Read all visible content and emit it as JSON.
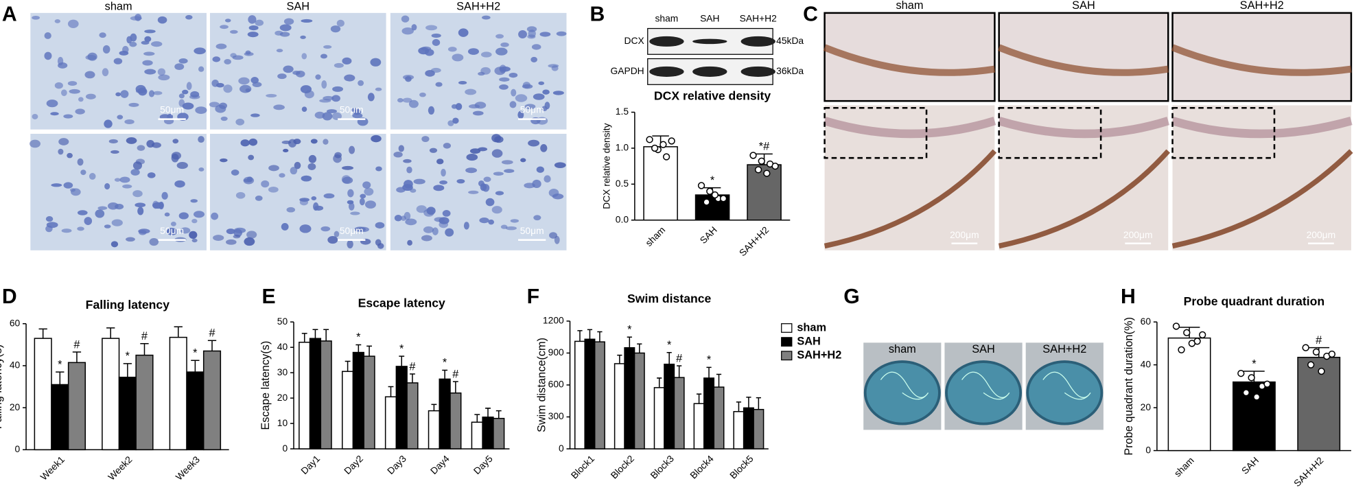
{
  "panel_labels": [
    "A",
    "B",
    "C",
    "D",
    "E",
    "F",
    "G",
    "H"
  ],
  "panel_a": {
    "columns": [
      "sham",
      "SAH",
      "SAH+H2"
    ],
    "scale_bar": "50μm"
  },
  "panel_b_blot": {
    "columns": [
      "sham",
      "SAH",
      "SAH+H2"
    ],
    "rows": [
      "DCX",
      "GAPDH"
    ],
    "sizes": [
      "45kDa",
      "36kDa"
    ]
  },
  "panel_c": {
    "columns": [
      "sham",
      "SAH",
      "SAH+H2"
    ],
    "scale_bar": "200μm"
  },
  "panel_g": {
    "columns": [
      "sham",
      "SAH",
      "SAH+H2"
    ]
  },
  "chart_data": [
    {
      "type": "bar",
      "title": "DCX relative density",
      "y_label": "DCX relative density",
      "categories": [
        "sham",
        "SAH",
        "SAH+H2"
      ],
      "values": [
        1.02,
        0.35,
        0.77
      ],
      "errors": [
        0.15,
        0.1,
        0.15
      ],
      "colors": [
        "#ffffff",
        "#000000",
        "#666666"
      ],
      "points": [
        [
          1.12,
          0.98,
          0.88,
          1.0,
          1.05,
          1.1
        ],
        [
          0.48,
          0.4,
          0.3,
          0.25,
          0.35,
          0.3
        ],
        [
          0.9,
          0.82,
          0.78,
          0.7,
          0.65,
          0.75
        ]
      ],
      "significance": [
        null,
        "*",
        "*#"
      ],
      "ylim": [
        0,
        1.5
      ],
      "yticks": [
        {
          "value": 0,
          "label": "0.0"
        },
        {
          "value": 0.5,
          "label": "0.5"
        },
        {
          "value": 1,
          "label": "1.0"
        },
        {
          "value": 1.5,
          "label": "1.5"
        }
      ]
    },
    {
      "type": "grouped_bar",
      "title": "Falling latency",
      "y_label": "Falling latency(s)",
      "categories": [
        "Week1",
        "Week2",
        "Week3"
      ],
      "series": [
        {
          "name": "sham",
          "color": "#ffffff",
          "values": [
            53,
            53,
            53.5
          ],
          "errors": [
            4.5,
            5,
            5
          ],
          "significance": [
            null,
            null,
            null
          ]
        },
        {
          "name": "SAH",
          "color": "#000000",
          "values": [
            31,
            34.5,
            37
          ],
          "errors": [
            6,
            6.5,
            5.5
          ],
          "significance": [
            "*",
            "*",
            "*"
          ]
        },
        {
          "name": "SAH+H2",
          "color": "#808080",
          "values": [
            41.5,
            45,
            47
          ],
          "errors": [
            5,
            5.5,
            5
          ],
          "significance": [
            "#",
            "#",
            "#"
          ]
        }
      ],
      "ylim": [
        0,
        60
      ],
      "yticks": [
        0,
        20,
        40,
        60
      ]
    },
    {
      "type": "grouped_bar",
      "title": "Escape latency",
      "y_label": "Escape latency(s)",
      "categories": [
        "Day1",
        "Day2",
        "Day3",
        "Day4",
        "Day5"
      ],
      "series": [
        {
          "name": "sham",
          "color": "#ffffff",
          "values": [
            42,
            30.5,
            20.5,
            15,
            10.5
          ],
          "errors": [
            3.5,
            4,
            4,
            2.5,
            3
          ],
          "significance": [
            null,
            null,
            null,
            null,
            null
          ]
        },
        {
          "name": "SAH",
          "color": "#000000",
          "values": [
            43.5,
            38,
            32.5,
            27.5,
            12.5
          ],
          "errors": [
            3.5,
            3,
            4,
            3.5,
            3.5
          ],
          "significance": [
            null,
            "*",
            "*",
            "*",
            null
          ]
        },
        {
          "name": "SAH+H2",
          "color": "#808080",
          "values": [
            42.5,
            36.5,
            26,
            22,
            12
          ],
          "errors": [
            4.5,
            4,
            3.5,
            4.5,
            3
          ],
          "significance": [
            null,
            null,
            "#",
            "#",
            null
          ]
        }
      ],
      "ylim": [
        0,
        50
      ],
      "yticks": [
        0,
        10,
        20,
        30,
        40,
        50
      ]
    },
    {
      "type": "grouped_bar",
      "title": "Swim distance",
      "y_label": "Swim distance(cm)",
      "legend": true,
      "categories": [
        "Block1",
        "Block2",
        "Block3",
        "Block4",
        "Block5"
      ],
      "series": [
        {
          "name": "sham",
          "color": "#ffffff",
          "values": [
            1010,
            800,
            575,
            425,
            350
          ],
          "errors": [
            100,
            80,
            90,
            90,
            90
          ],
          "significance": [
            null,
            null,
            null,
            null,
            null
          ]
        },
        {
          "name": "SAH",
          "color": "#000000",
          "values": [
            1030,
            950,
            795,
            665,
            385
          ],
          "errors": [
            90,
            100,
            110,
            100,
            100
          ],
          "significance": [
            null,
            "*",
            "*",
            "*",
            null
          ]
        },
        {
          "name": "SAH+H2",
          "color": "#808080",
          "values": [
            1005,
            900,
            670,
            580,
            370
          ],
          "errors": [
            95,
            85,
            110,
            120,
            110
          ],
          "significance": [
            null,
            null,
            "#",
            null,
            null
          ]
        }
      ],
      "ylim": [
        0,
        1200
      ],
      "yticks": [
        0,
        300,
        600,
        900,
        1200
      ]
    },
    {
      "type": "bar",
      "title": "Probe quadrant duration",
      "y_label": "Probe quadrant duration(%)",
      "categories": [
        "sham",
        "SAH",
        "SAH+H2"
      ],
      "values": [
        52.5,
        32,
        43.5
      ],
      "errors": [
        5,
        5,
        4.5
      ],
      "colors": [
        "#ffffff",
        "#000000",
        "#666666"
      ],
      "points": [
        [
          58,
          55,
          51,
          47,
          50,
          54
        ],
        [
          36,
          34,
          30,
          27,
          25,
          31
        ],
        [
          48,
          46,
          44,
          40,
          37,
          45
        ]
      ],
      "significance": [
        null,
        "*",
        "#"
      ],
      "ylim": [
        0,
        60
      ],
      "yticks": [
        0,
        20,
        40,
        60
      ]
    }
  ]
}
